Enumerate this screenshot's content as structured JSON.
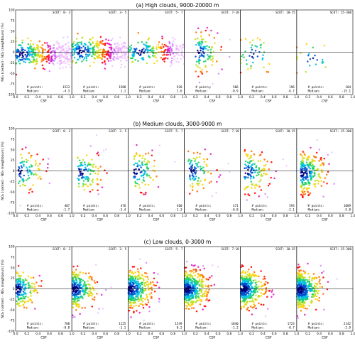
{
  "chart_data": [
    {
      "type": "scatter",
      "title": "(a) High clouds, 9000-20000 m",
      "xlabel": "CSF",
      "ylabel": "NO₂ (center) - NO₂ (neighbours) (%)",
      "xlim": [
        0.0,
        1.0
      ],
      "ylim": [
        -100,
        100
      ],
      "xticks": [
        "0.0",
        "0.2",
        "0.4",
        "0.6",
        "0.8",
        "1.0"
      ],
      "yticks": [
        "100",
        "75",
        "50",
        "25",
        "0",
        "-25",
        "-50",
        "-75",
        "-100"
      ],
      "panels": [
        {
          "scot_label": "SCOT: 0- 3",
          "points": 1523,
          "median": -4.3,
          "center_x": 0.12,
          "spread": "wide"
        },
        {
          "scot_label": "SCOT: 3- 5",
          "points": 1508,
          "median": 1.1,
          "center_x": 0.18,
          "spread": "wide"
        },
        {
          "scot_label": "SCOT: 5- 7",
          "points": 928,
          "median": 1.6,
          "center_x": 0.22,
          "spread": "wide"
        },
        {
          "scot_label": "SCOT: 7-10",
          "points": 506,
          "median": -0.9,
          "center_x": 0.25,
          "spread": "medium"
        },
        {
          "scot_label": "SCOT: 10-15",
          "points": 196,
          "median": -6.7,
          "center_x": 0.25,
          "spread": "sparse"
        },
        {
          "scot_label": "SCOT: 15-300",
          "points": 104,
          "median": -15.1,
          "center_x": 0.3,
          "spread": "sparse"
        }
      ]
    },
    {
      "type": "scatter",
      "title": "(b) Medium clouds, 3000-9000 m",
      "xlabel": "CSF",
      "ylabel": "NO₂ (center) - NO₂ (neighbours) (%)",
      "xlim": [
        0.0,
        1.0
      ],
      "ylim": [
        -100,
        100
      ],
      "xticks": [
        "0.0",
        "0.2",
        "0.4",
        "0.6",
        "0.8",
        "1.0"
      ],
      "yticks": [
        "100",
        "75",
        "50",
        "25",
        "0",
        "-25",
        "-50",
        "-75",
        "-100"
      ],
      "panels": [
        {
          "scot_label": "SCOT: 0- 3",
          "points": 407,
          "median": -1.7,
          "center_x": 0.1,
          "spread": "medium"
        },
        {
          "scot_label": "SCOT: 3- 5",
          "points": 476,
          "median": -3.4,
          "center_x": 0.15,
          "spread": "medium"
        },
        {
          "scot_label": "SCOT: 5- 7",
          "points": 460,
          "median": -1.3,
          "center_x": 0.15,
          "spread": "medium"
        },
        {
          "scot_label": "SCOT: 7-10",
          "points": 471,
          "median": -0.8,
          "center_x": 0.12,
          "spread": "medium"
        },
        {
          "scot_label": "SCOT: 10-15",
          "points": 593,
          "median": -2.1,
          "center_x": 0.12,
          "spread": "dense"
        },
        {
          "scot_label": "SCOT: 15-300",
          "points": 1089,
          "median": -5.8,
          "center_x": 0.12,
          "spread": "dense"
        }
      ]
    },
    {
      "type": "scatter",
      "title": "(c) Low clouds, 0-3000 m",
      "xlabel": "CSF",
      "ylabel": "NO₂ (center) - NO₂ (neighbours) (%)",
      "xlim": [
        0.0,
        1.0
      ],
      "ylim": [
        -100,
        100
      ],
      "xticks": [
        "0.0",
        "0.2",
        "0.4",
        "0.6",
        "0.8",
        "1.0"
      ],
      "yticks": [
        "100",
        "75",
        "50",
        "25",
        "0",
        "-25",
        "-50",
        "-75",
        "-100"
      ],
      "panels": [
        {
          "scot_label": "SCOT: 0- 3",
          "points": 788,
          "median": -0.8,
          "center_x": 0.03,
          "spread": "edge"
        },
        {
          "scot_label": "SCOT: 3- 5",
          "points": 1125,
          "median": -1.1,
          "center_x": 0.05,
          "spread": "edge"
        },
        {
          "scot_label": "SCOT: 5- 7",
          "points": 1549,
          "median": 0.2,
          "center_x": 0.06,
          "spread": "edge"
        },
        {
          "scot_label": "SCOT: 7-10",
          "points": 1840,
          "median": -1.2,
          "center_x": 0.06,
          "spread": "edge"
        },
        {
          "scot_label": "SCOT: 10-15",
          "points": 1723,
          "median": -0.7,
          "center_x": 0.07,
          "spread": "edge"
        },
        {
          "scot_label": "SCOT: 15-300",
          "points": 2142,
          "median": -2.9,
          "center_x": 0.08,
          "spread": "edge"
        }
      ]
    }
  ],
  "labels": {
    "points_prefix": "# points:",
    "median_prefix": "Median:"
  }
}
